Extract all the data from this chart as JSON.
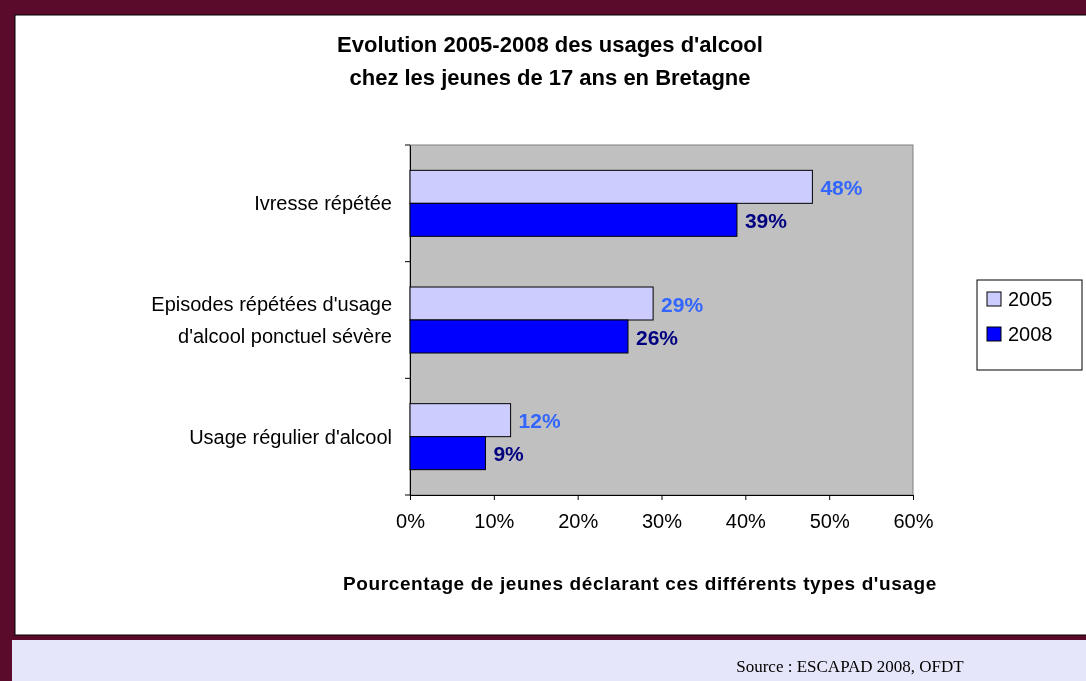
{
  "chart_data": {
    "type": "bar",
    "orientation": "horizontal",
    "title": "Evolution 2005-2008 des usages d'alcool\nchez les jeunes de 17 ans en Bretagne",
    "xlabel": "Pourcentage de jeunes déclarant ces différents types d'usage",
    "categories": [
      "Ivresse répétée",
      "Episodes répétées d'usage\nd'alcool ponctuel sévère",
      "Usage régulier d'alcool"
    ],
    "series": [
      {
        "name": "2005",
        "color": "#ccccff",
        "values": [
          48,
          29,
          12
        ],
        "value_labels": [
          "48%",
          "29%",
          "12%"
        ]
      },
      {
        "name": "2008",
        "color": "#0000ff",
        "values": [
          39,
          26,
          9
        ],
        "value_labels": [
          "39%",
          "26%",
          "9%"
        ]
      }
    ],
    "xlim": [
      0,
      60
    ],
    "xticks": [
      {
        "value": 0,
        "label": "0%"
      },
      {
        "value": 10,
        "label": "10%"
      },
      {
        "value": 20,
        "label": "20%"
      },
      {
        "value": 30,
        "label": "30%"
      },
      {
        "value": 40,
        "label": "40%"
      },
      {
        "value": 50,
        "label": "50%"
      },
      {
        "value": 60,
        "label": "60%"
      }
    ],
    "grid": false,
    "legend": "right",
    "annotations": [
      "Source : ESCAPAD 2008, OFDT"
    ]
  }
}
